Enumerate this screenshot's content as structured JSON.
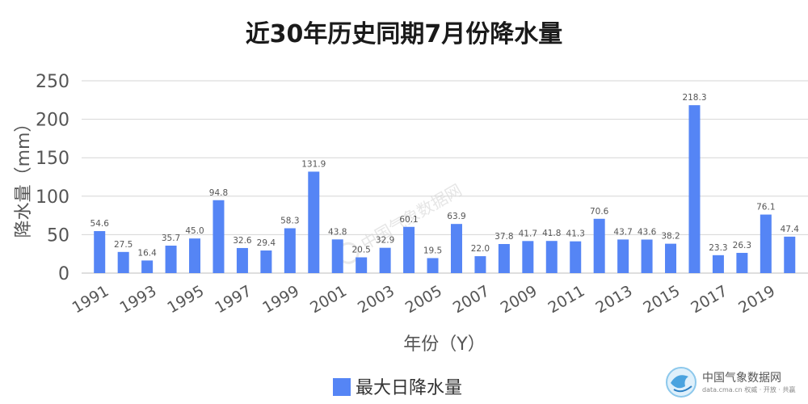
{
  "chart_data": {
    "type": "bar",
    "title": "近30年历史同期7月份降水量",
    "xlabel": "年份（Y）",
    "ylabel": "降水量（mm）",
    "ylim": [
      0,
      250
    ],
    "yticks": [
      0,
      50,
      100,
      150,
      200,
      250
    ],
    "categories": [
      "1991",
      "1992",
      "1993",
      "1994",
      "1995",
      "1996",
      "1997",
      "1998",
      "1999",
      "2000",
      "2001",
      "2002",
      "2003",
      "2004",
      "2005",
      "2006",
      "2007",
      "2008",
      "2009",
      "2010",
      "2011",
      "2012",
      "2013",
      "2014",
      "2015",
      "2016",
      "2017",
      "2018",
      "2019",
      "2020"
    ],
    "xtick_labels": [
      "1991",
      "1993",
      "1995",
      "1997",
      "1999",
      "2001",
      "2003",
      "2005",
      "2007",
      "2009",
      "2011",
      "2013",
      "2015",
      "2017",
      "2019"
    ],
    "series": [
      {
        "name": "最大日降水量",
        "color": "#5585f5",
        "values": [
          54.6,
          27.5,
          16.4,
          35.7,
          45.0,
          94.8,
          32.6,
          29.4,
          58.3,
          131.9,
          43.8,
          20.5,
          32.9,
          60.1,
          19.5,
          63.9,
          22.0,
          37.8,
          41.7,
          41.8,
          41.3,
          70.6,
          43.7,
          43.6,
          38.2,
          218.3,
          23.3,
          26.3,
          76.1,
          47.4
        ],
        "data_labels": [
          "54.6",
          "27.5",
          "16.4",
          "35.7",
          "45.0",
          "94.8",
          "32.6",
          "29.4",
          "58.3",
          "131.9",
          "43.8",
          "20.5",
          "32.9",
          "60.1",
          "19.5",
          "63.9",
          "22.0",
          "37.8",
          "41.7",
          "41.8",
          "41.3",
          "70.6",
          "43.7",
          "43.6",
          "38.2",
          "218.3",
          "23.3",
          "26.3",
          "76.1",
          "47.4"
        ]
      }
    ],
    "grid": true,
    "legend_position": "bottom-center"
  },
  "watermark": {
    "text": "中国气象数据网"
  },
  "logo": {
    "name": "中国气象数据网",
    "tagline": "data.cma.cn 权威 · 开放 · 共赢",
    "icon": "cma-logo-icon"
  }
}
